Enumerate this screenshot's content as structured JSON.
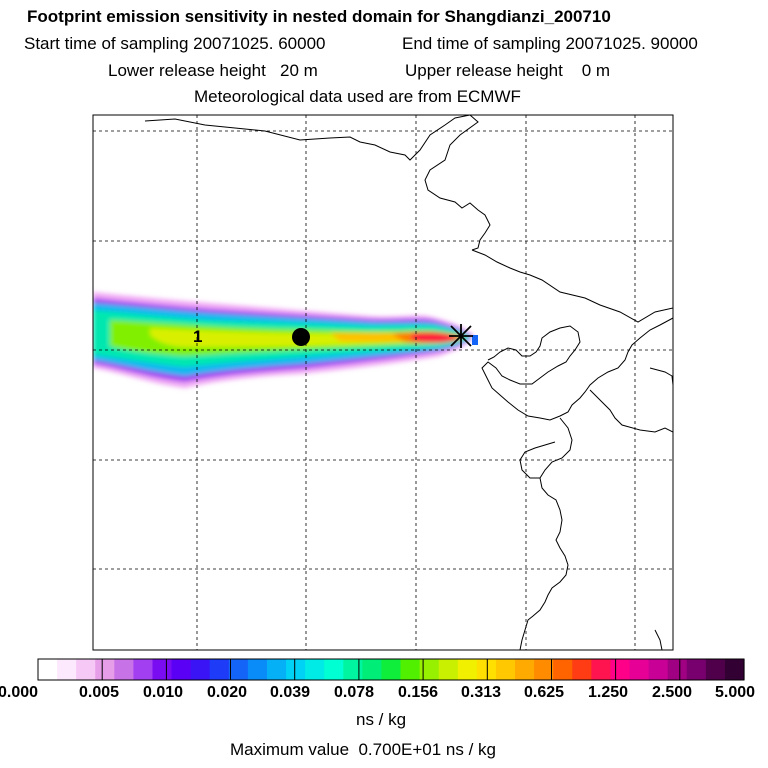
{
  "header": {
    "title": "Footprint emission sensitivity in nested domain for Shangdianzi_200710",
    "start_time": "Start time of sampling 20071025. 60000",
    "end_time": "End time of sampling 20071025. 90000",
    "lower_height": "Lower release height   20 m",
    "upper_height": "Upper release height    0 m",
    "met_data": "Meteorological data used are from ECMWF"
  },
  "map": {
    "label_1": "1"
  },
  "colorbar": {
    "colors": [
      "#ffffff",
      "#fde9fd",
      "#f5c8f5",
      "#e69ee8",
      "#c872e8",
      "#a23ff0",
      "#7a0cf2",
      "#5a00f5",
      "#3a14f5",
      "#1e3cf7",
      "#1464f8",
      "#0a8cf8",
      "#06b0f7",
      "#00d2f5",
      "#00ebe6",
      "#00ffd2",
      "#00f5a0",
      "#00ee78",
      "#10ee3c",
      "#50f000",
      "#96f000",
      "#c8f000",
      "#f0f000",
      "#ffe000",
      "#ffc800",
      "#ffaa00",
      "#ff8c00",
      "#ff6400",
      "#ff3c14",
      "#ff1450",
      "#ff0088",
      "#e60096",
      "#c80096",
      "#a00082",
      "#78006e",
      "#50004b",
      "#330033"
    ],
    "tick_labels": [
      "0.000",
      "0.005",
      "0.010",
      "0.020",
      "0.039",
      "0.078",
      "0.156",
      "0.313",
      "0.625",
      "1.250",
      "2.500",
      "5.000"
    ],
    "unit": "ns / kg",
    "max_value": "Maximum value  0.700E+01 ns / kg"
  }
}
